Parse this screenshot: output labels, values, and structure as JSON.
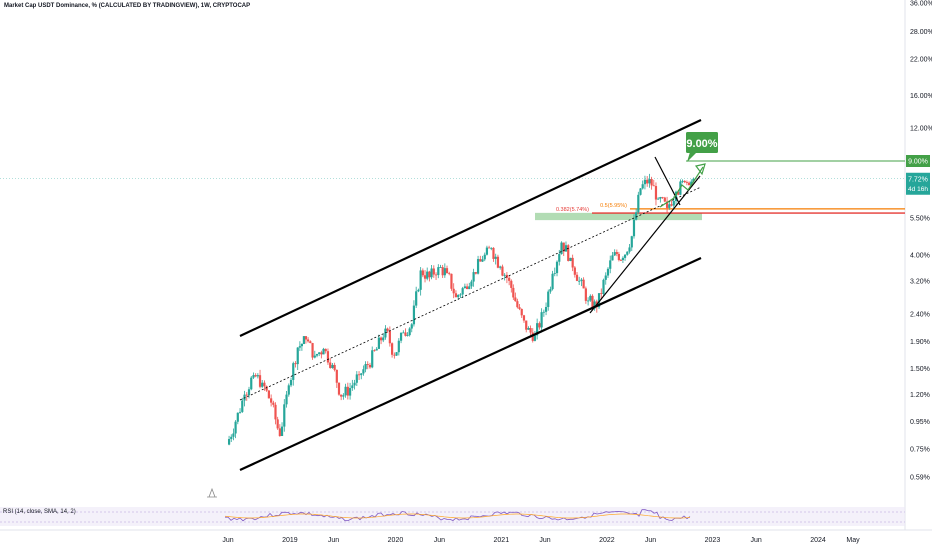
{
  "header": {
    "title": "Market Cap USDT Dominance, % (CALCULATED BY TRADINGVIEW), 1W, CRYPTOCAP"
  },
  "rsi": {
    "label": "RSI (14, close, SMA, 14, 2)"
  },
  "annotation": {
    "target": "9.00%"
  },
  "fib_labels": [
    "0.382(5.74%)",
    "0.5(5.95%)"
  ],
  "badges": {
    "target": "9.00%",
    "current": "7.72%",
    "countdown": "4d 16h"
  },
  "colors": {
    "up": "#26a69a",
    "down": "#ef5350",
    "target_green": "#43a047",
    "fib_orange": "#f57c00",
    "fib_red": "#e53935",
    "zone_green": "#a5d6a7",
    "current_teal": "#26a69a"
  },
  "chart_data": {
    "type": "candlestick",
    "title": "Market Cap USDT Dominance, % (CALCULATED BY TRADINGVIEW), 1W, CRYPTOCAP",
    "y_scale": "log",
    "y_ticks": [
      "36.00%",
      "28.00%",
      "22.00%",
      "16.00%",
      "12.00%",
      "9.00%",
      "7.72%",
      "5.50%",
      "4.00%",
      "3.20%",
      "2.40%",
      "1.90%",
      "1.50%",
      "1.20%",
      "0.95%",
      "0.75%",
      "0.59%"
    ],
    "y_tick_values": [
      36,
      28,
      22,
      16,
      12,
      9,
      7.72,
      5.5,
      4,
      3.2,
      2.4,
      1.9,
      1.5,
      1.2,
      0.95,
      0.75,
      0.59
    ],
    "x_ticks": [
      "Jun",
      "2019",
      "Jun",
      "2020",
      "Jun",
      "2021",
      "Jun",
      "2022",
      "Jun",
      "2023",
      "Jun",
      "2024",
      "May"
    ],
    "x_tick_values": [
      "2018-06",
      "2019-01",
      "2019-06",
      "2020-01",
      "2020-06",
      "2021-01",
      "2021-06",
      "2022-01",
      "2022-06",
      "2023-01",
      "2023-06",
      "2024-01",
      "2024-05"
    ],
    "last_value": 7.72,
    "target_level": 9.0,
    "fib_levels": [
      {
        "label": "0.382(5.74%)",
        "value": 5.74
      },
      {
        "label": "0.5(5.95%)",
        "value": 5.95
      }
    ],
    "support_zone": [
      5.4,
      5.75
    ],
    "series": [
      {
        "values": [
          [
            "2018-06",
            0.78,
            0.95,
            0.76,
            0.98
          ],
          [
            "2018-07",
            0.95,
            1.2,
            0.93,
            1.24
          ],
          [
            "2018-08",
            1.2,
            1.42,
            1.13,
            1.48
          ],
          [
            "2018-09",
            1.42,
            1.33,
            1.25,
            1.5
          ],
          [
            "2018-10",
            1.33,
            1.12,
            1.08,
            1.36
          ],
          [
            "2018-11",
            1.12,
            0.84,
            0.82,
            1.14
          ],
          [
            "2018-12",
            0.84,
            1.3,
            0.84,
            1.33
          ],
          [
            "2019-01",
            1.3,
            1.8,
            1.28,
            1.88
          ],
          [
            "2019-02",
            1.8,
            1.93,
            1.74,
            1.99
          ],
          [
            "2019-03",
            1.93,
            1.68,
            1.62,
            1.97
          ],
          [
            "2019-04",
            1.68,
            1.78,
            1.64,
            1.86
          ],
          [
            "2019-05",
            1.78,
            1.55,
            1.5,
            1.83
          ],
          [
            "2019-06",
            1.55,
            1.18,
            1.12,
            1.58
          ],
          [
            "2019-07",
            1.18,
            1.27,
            1.12,
            1.33
          ],
          [
            "2019-08",
            1.27,
            1.42,
            1.24,
            1.47
          ],
          [
            "2019-09",
            1.42,
            1.55,
            1.37,
            1.6
          ],
          [
            "2019-10",
            1.55,
            1.78,
            1.5,
            1.86
          ],
          [
            "2019-11",
            1.78,
            2.12,
            1.73,
            2.2
          ],
          [
            "2019-12",
            2.12,
            1.68,
            1.62,
            2.16
          ],
          [
            "2020-01",
            1.68,
            2.05,
            1.63,
            2.12
          ],
          [
            "2020-02",
            2.05,
            2.2,
            1.98,
            2.28
          ],
          [
            "2020-03",
            2.2,
            3.5,
            2.15,
            3.95
          ],
          [
            "2020-04",
            3.5,
            3.3,
            3.1,
            3.7
          ],
          [
            "2020-05",
            3.3,
            3.6,
            3.12,
            3.78
          ],
          [
            "2020-06",
            3.6,
            3.42,
            3.28,
            3.72
          ],
          [
            "2020-07",
            3.42,
            2.78,
            2.7,
            3.46
          ],
          [
            "2020-08",
            2.78,
            3.05,
            2.72,
            3.14
          ],
          [
            "2020-09",
            3.05,
            3.45,
            2.98,
            3.55
          ],
          [
            "2020-10",
            3.45,
            3.85,
            3.38,
            3.97
          ],
          [
            "2020-11",
            3.85,
            4.25,
            3.78,
            4.33
          ],
          [
            "2020-12",
            4.25,
            3.62,
            3.5,
            4.28
          ],
          [
            "2021-01",
            3.62,
            3.2,
            3.05,
            3.7
          ],
          [
            "2021-02",
            3.2,
            2.55,
            2.48,
            3.26
          ],
          [
            "2021-03",
            2.55,
            2.1,
            2.0,
            2.62
          ],
          [
            "2021-04",
            2.1,
            2.0,
            1.88,
            2.28
          ],
          [
            "2021-05",
            2.0,
            2.45,
            1.93,
            2.55
          ],
          [
            "2021-06",
            2.45,
            3.4,
            2.38,
            4.05
          ],
          [
            "2021-07",
            3.4,
            4.45,
            3.33,
            4.5
          ],
          [
            "2021-08",
            4.45,
            3.9,
            3.78,
            4.55
          ],
          [
            "2021-09",
            3.9,
            3.2,
            3.05,
            4.02
          ],
          [
            "2021-10",
            3.2,
            2.7,
            2.58,
            3.3
          ],
          [
            "2021-11",
            2.7,
            2.55,
            2.42,
            2.85
          ],
          [
            "2021-12",
            2.55,
            3.35,
            2.5,
            3.45
          ],
          [
            "2022-01",
            3.35,
            4.1,
            3.28,
            4.2
          ],
          [
            "2022-02",
            4.1,
            3.9,
            3.72,
            4.25
          ],
          [
            "2022-03",
            3.9,
            4.7,
            3.8,
            4.9
          ],
          [
            "2022-04",
            4.7,
            7.1,
            4.6,
            7.25
          ],
          [
            "2022-05",
            7.1,
            7.7,
            6.4,
            8.05
          ],
          [
            "2022-06",
            7.7,
            6.5,
            5.7,
            7.85
          ],
          [
            "2022-07",
            6.5,
            6.0,
            5.5,
            6.6
          ],
          [
            "2022-08",
            6.0,
            6.9,
            5.9,
            7.05
          ],
          [
            "2022-09",
            6.9,
            7.5,
            6.7,
            7.68
          ],
          [
            "2022-10",
            7.5,
            7.72,
            7.3,
            7.85
          ]
        ]
      }
    ]
  }
}
